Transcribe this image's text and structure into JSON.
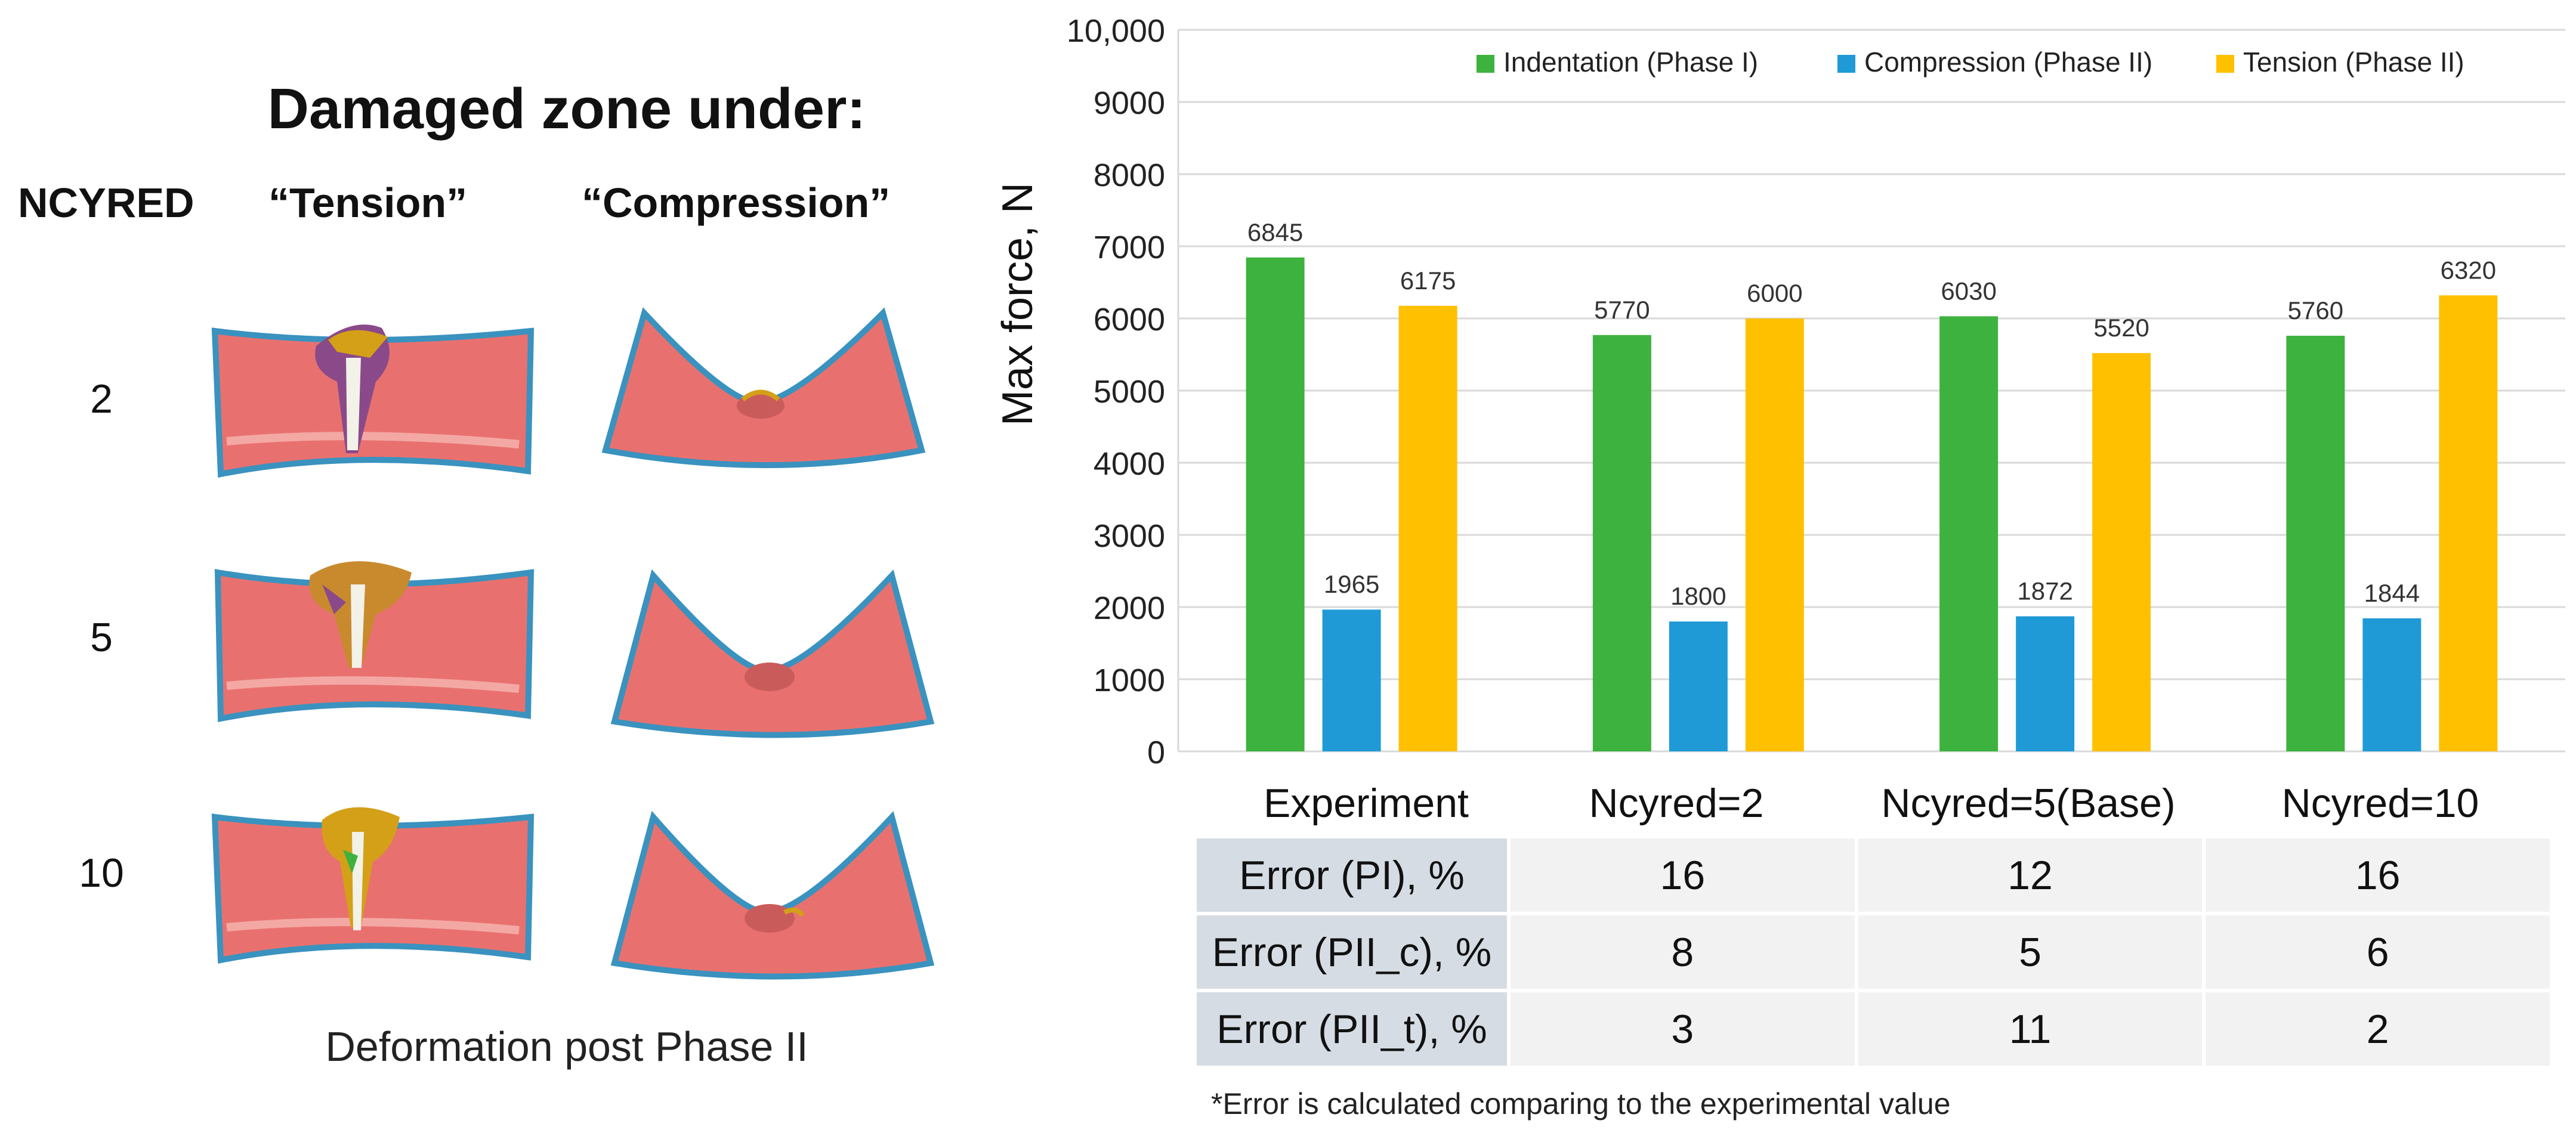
{
  "left_panel": {
    "title": "Damaged zone under:",
    "row_header": "NCYRED",
    "col_tension": "“Tension”",
    "col_compression": "“Compression”",
    "rows": [
      "2",
      "5",
      "10"
    ],
    "caption": "Deformation post Phase II"
  },
  "colors": {
    "indentation": "#3db23e",
    "compression": "#1f9ad6",
    "tension": "#ffc000",
    "specimen": "#e8716f",
    "specimen_edge": "#3a92bf"
  },
  "chart_data": {
    "type": "bar",
    "categories": [
      "Experiment",
      "Ncyred=2",
      "Ncyred=5(Base)",
      "Ncyred=10"
    ],
    "series": [
      {
        "name": "Indentation (Phase I)",
        "values": [
          6845,
          5770,
          6030,
          5760
        ]
      },
      {
        "name": "Compression (Phase II)",
        "values": [
          1965,
          1800,
          1872,
          1844
        ]
      },
      {
        "name": "Tension (Phase II)",
        "values": [
          6175,
          6000,
          5520,
          6320
        ]
      }
    ],
    "ylabel": "Max force, N",
    "ylim": [
      0,
      10000
    ],
    "yticks": [
      "0",
      "1000",
      "2000",
      "3000",
      "4000",
      "5000",
      "6000",
      "7000",
      "8000",
      "9000",
      "10,000"
    ],
    "grid": true,
    "legend": "top"
  },
  "table": {
    "rows": [
      {
        "label": "Error (PI), %",
        "values": [
          "16",
          "12",
          "16"
        ]
      },
      {
        "label": "Error (PII_c), %",
        "values": [
          "8",
          "5",
          "6"
        ]
      },
      {
        "label": "Error (PII_t), %",
        "values": [
          "3",
          "11",
          "2"
        ]
      }
    ],
    "footnote": "*Error is calculated comparing to the experimental value"
  }
}
